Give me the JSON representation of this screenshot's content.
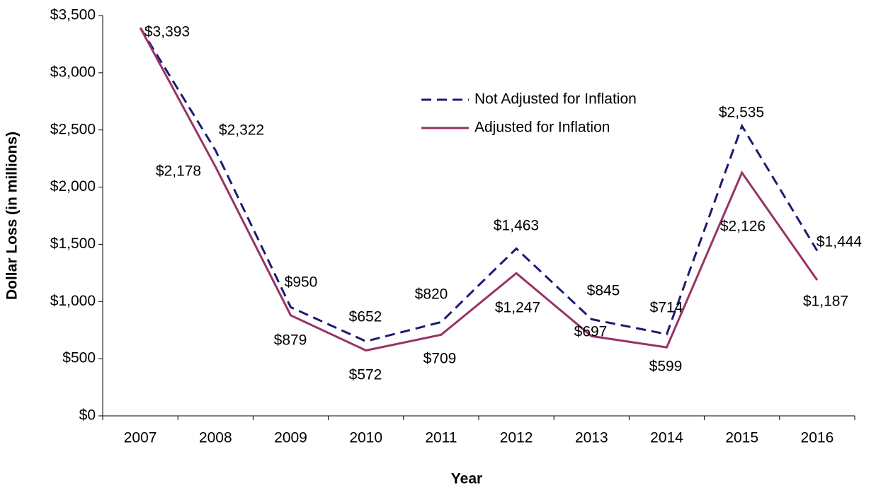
{
  "chart_data": {
    "type": "line",
    "x_label": "Year",
    "y_label": "Dollar Loss (in millions)",
    "categories": [
      "2007",
      "2008",
      "2009",
      "2010",
      "2011",
      "2012",
      "2013",
      "2014",
      "2015",
      "2016"
    ],
    "series": [
      {
        "name": "Not Adjusted for Inflation",
        "color": "#1c1c72",
        "dash": true,
        "values": [
          3393,
          2322,
          950,
          652,
          820,
          1463,
          845,
          714,
          2535,
          1444
        ],
        "value_labels": [
          "$3,393",
          "$2,322",
          "$950",
          "$652",
          "$820",
          "$1,463",
          "$845",
          "$714",
          "$2,535",
          "$1,444"
        ]
      },
      {
        "name": "Adjusted for Inflation",
        "color": "#993366",
        "dash": false,
        "values": [
          3393,
          2178,
          879,
          572,
          709,
          1247,
          697,
          599,
          2126,
          1187
        ],
        "value_labels": [
          null,
          "$2,178",
          "$879",
          "$572",
          "$709",
          "$1,247",
          "$697",
          "$599",
          "$2,126",
          "$1,187"
        ]
      }
    ],
    "ylim": [
      0,
      3500
    ],
    "yticks": [
      {
        "value": 0,
        "label": "$0"
      },
      {
        "value": 500,
        "label": "$500"
      },
      {
        "value": 1000,
        "label": "$1,000"
      },
      {
        "value": 1500,
        "label": "$1,500"
      },
      {
        "value": 2000,
        "label": "$2,000"
      },
      {
        "value": 2500,
        "label": "$2,500"
      },
      {
        "value": 3000,
        "label": "$3,000"
      },
      {
        "value": 3500,
        "label": "$3,500"
      }
    ],
    "grid": false
  }
}
